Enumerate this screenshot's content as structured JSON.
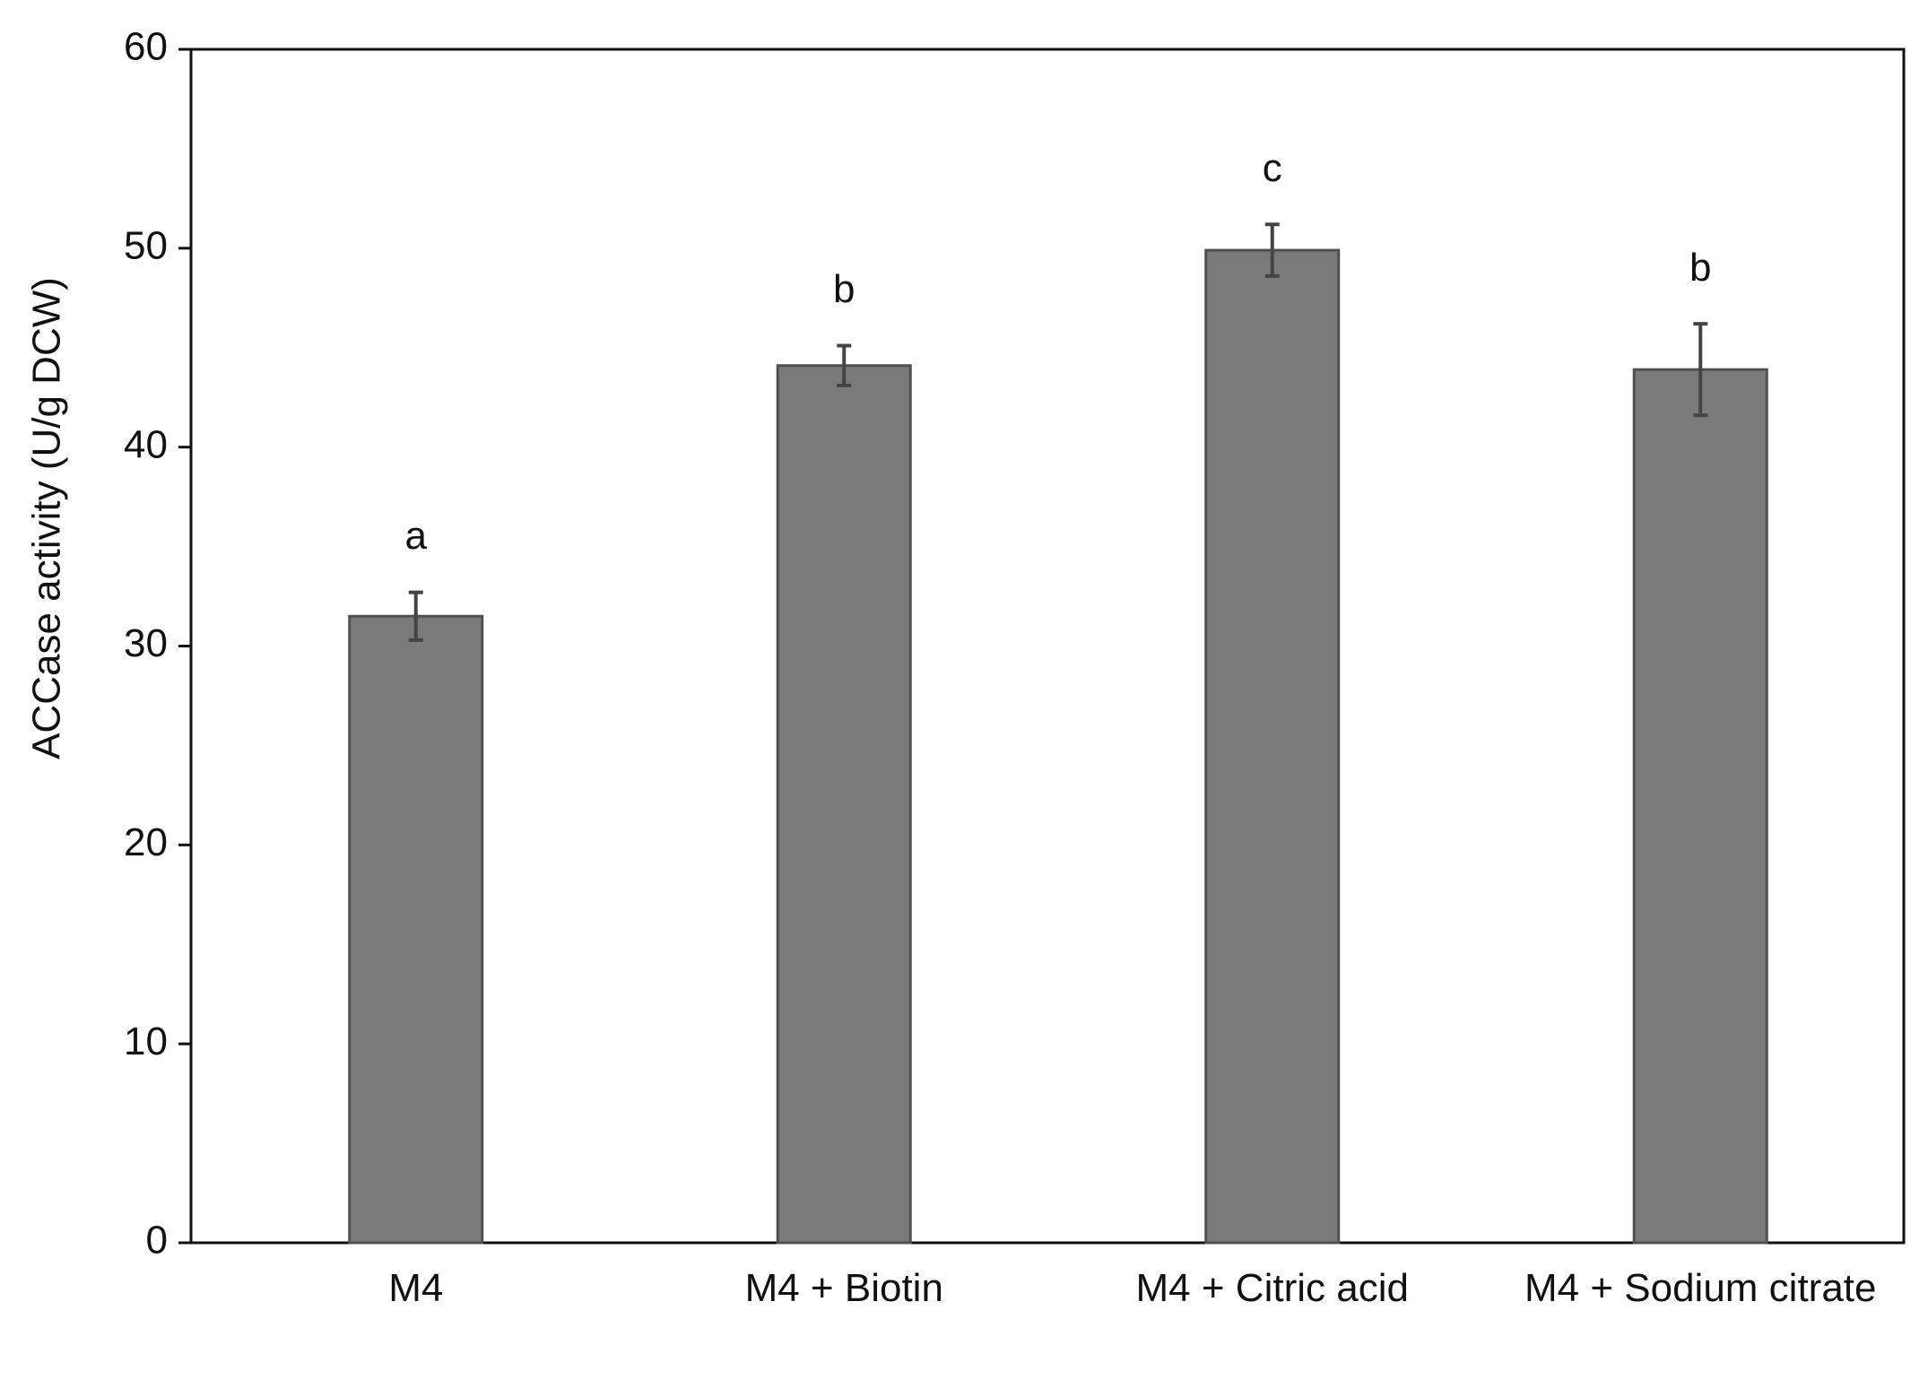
{
  "chart_data": {
    "type": "bar",
    "y_label": "ACCase activity (U/g DCW)",
    "categories": [
      "M4",
      "M4 + Biotin",
      "M4 + Citric acid",
      "M4 + Sodium citrate"
    ],
    "values": [
      31.5,
      44.1,
      49.9,
      43.9
    ],
    "errors": [
      1.2,
      1.0,
      1.3,
      2.3
    ],
    "annotations": [
      "a",
      "b",
      "c",
      "b"
    ],
    "color": "#7a7a7a",
    "ylim": [
      0,
      60
    ],
    "yticks": [
      0,
      10,
      20,
      30,
      40,
      50,
      60
    ],
    "grid": false
  }
}
